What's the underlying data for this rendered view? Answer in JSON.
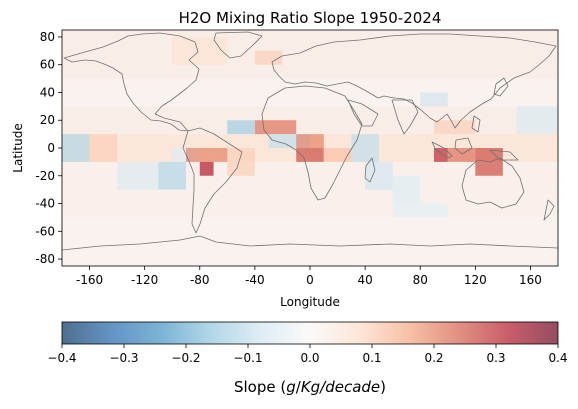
{
  "chart_data": {
    "type": "heatmap",
    "title": "H2O Mixing Ratio Slope 1950-2024",
    "xlabel": "Longitude",
    "ylabel": "Latitude",
    "xlim": [
      -180,
      180
    ],
    "ylim": [
      -85,
      85
    ],
    "x_ticks": [
      "-160",
      "-120",
      "-80",
      "-40",
      "0",
      "40",
      "80",
      "120",
      "160"
    ],
    "y_ticks": [
      "80",
      "60",
      "40",
      "20",
      "0",
      "-20",
      "-40",
      "-60",
      "-80"
    ],
    "colorbar": {
      "label": "Slope (g/Kg/decade)",
      "label_math": "Kg/decade",
      "range": [
        -0.4,
        0.4
      ],
      "ticks": [
        "−0.4",
        "−0.3",
        "−0.2",
        "−0.1",
        "0.0",
        "0.1",
        "0.2",
        "0.3",
        "0.4"
      ],
      "colormap": "RdBu_r"
    },
    "grid": false,
    "cell_size_deg": [
      10,
      10
    ],
    "cells": [
      {
        "lon": [
          -180,
          180
        ],
        "lat": [
          -85,
          -50
        ],
        "value": 0.02
      },
      {
        "lon": [
          -180,
          180
        ],
        "lat": [
          -50,
          -30
        ],
        "value": 0.03
      },
      {
        "lon": [
          -180,
          180
        ],
        "lat": [
          -30,
          -10
        ],
        "value": 0.03
      },
      {
        "lon": [
          -180,
          180
        ],
        "lat": [
          -10,
          10
        ],
        "value": 0.07
      },
      {
        "lon": [
          -180,
          180
        ],
        "lat": [
          10,
          30
        ],
        "value": 0.04
      },
      {
        "lon": [
          -180,
          180
        ],
        "lat": [
          30,
          50
        ],
        "value": 0.02
      },
      {
        "lon": [
          -180,
          180
        ],
        "lat": [
          50,
          85
        ],
        "value": 0.04
      },
      {
        "lon": [
          -140,
          -110
        ],
        "lat": [
          -30,
          -10
        ],
        "value": -0.06
      },
      {
        "lon": [
          -110,
          -90
        ],
        "lat": [
          -30,
          -10
        ],
        "value": -0.12
      },
      {
        "lon": [
          -100,
          -80
        ],
        "lat": [
          -10,
          0
        ],
        "value": -0.05
      },
      {
        "lon": [
          -180,
          -160
        ],
        "lat": [
          -10,
          10
        ],
        "value": -0.12
      },
      {
        "lon": [
          -160,
          -140
        ],
        "lat": [
          -10,
          10
        ],
        "value": 0.1
      },
      {
        "lon": [
          -90,
          -70
        ],
        "lat": [
          -10,
          0
        ],
        "value": 0.2
      },
      {
        "lon": [
          -80,
          -70
        ],
        "lat": [
          -20,
          -10
        ],
        "value": 0.32
      },
      {
        "lon": [
          -70,
          -60
        ],
        "lat": [
          -10,
          0
        ],
        "value": 0.2
      },
      {
        "lon": [
          -60,
          -40
        ],
        "lat": [
          -20,
          0
        ],
        "value": 0.1
      },
      {
        "lon": [
          -40,
          -10
        ],
        "lat": [
          10,
          20
        ],
        "value": 0.22
      },
      {
        "lon": [
          -60,
          -40
        ],
        "lat": [
          10,
          20
        ],
        "value": -0.14
      },
      {
        "lon": [
          -30,
          0
        ],
        "lat": [
          0,
          10
        ],
        "value": -0.1
      },
      {
        "lon": [
          -10,
          10
        ],
        "lat": [
          -10,
          0
        ],
        "value": 0.26
      },
      {
        "lon": [
          10,
          30
        ],
        "lat": [
          -10,
          0
        ],
        "value": 0.12
      },
      {
        "lon": [
          -10,
          10
        ],
        "lat": [
          0,
          10
        ],
        "value": 0.2
      },
      {
        "lon": [
          30,
          50
        ],
        "lat": [
          -10,
          10
        ],
        "value": -0.1
      },
      {
        "lon": [
          40,
          60
        ],
        "lat": [
          -30,
          -10
        ],
        "value": -0.08
      },
      {
        "lon": [
          60,
          80
        ],
        "lat": [
          -40,
          -20
        ],
        "value": -0.05
      },
      {
        "lon": [
          90,
          100
        ],
        "lat": [
          -10,
          0
        ],
        "value": 0.3
      },
      {
        "lon": [
          100,
          120
        ],
        "lat": [
          -10,
          0
        ],
        "value": 0.22
      },
      {
        "lon": [
          120,
          140
        ],
        "lat": [
          -20,
          0
        ],
        "value": 0.26
      },
      {
        "lon": [
          90,
          120
        ],
        "lat": [
          10,
          20
        ],
        "value": 0.1
      },
      {
        "lon": [
          150,
          180
        ],
        "lat": [
          10,
          30
        ],
        "value": -0.06
      },
      {
        "lon": [
          80,
          100
        ],
        "lat": [
          30,
          40
        ],
        "value": -0.08
      },
      {
        "lon": [
          60,
          100
        ],
        "lat": [
          -50,
          -40
        ],
        "value": -0.04
      },
      {
        "lon": [
          -40,
          -20
        ],
        "lat": [
          60,
          70
        ],
        "value": 0.1
      },
      {
        "lon": [
          -100,
          -60
        ],
        "lat": [
          60,
          80
        ],
        "value": 0.06
      }
    ]
  }
}
